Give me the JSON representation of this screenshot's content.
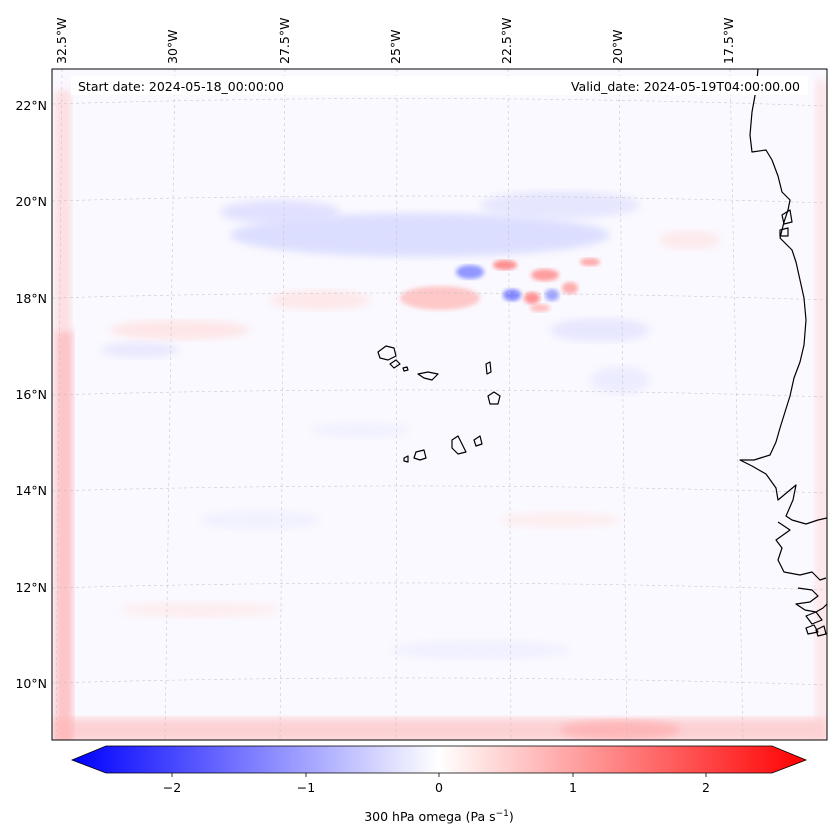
{
  "header": {
    "start_date": "Start date: 2024-05-18_00:00:00",
    "valid_date": "Valid_date: 2024-05-19T04:00:00.00"
  },
  "map": {
    "lon_labels": [
      "32.5°W",
      "30°W",
      "27.5°W",
      "25°W",
      "22.5°W",
      "20°W",
      "17.5°W"
    ],
    "lat_labels": [
      "22°N",
      "20°N",
      "18°N",
      "16°N",
      "14°N",
      "12°N",
      "10°N"
    ],
    "field": "300 hPa omega",
    "region": "Cabo Verde / West African coast"
  },
  "colorbar": {
    "label_prefix": "300 hPa omega (Pa s",
    "label_exp": "−1",
    "label_suffix": ")",
    "ticks": [
      "−2",
      "−1",
      "0",
      "1",
      "2"
    ],
    "tick_values": [
      -2,
      -1,
      0,
      1,
      2
    ],
    "range": [
      -2.5,
      2.5
    ],
    "colors": {
      "negative": "#0000ff",
      "zero": "#ffffff",
      "positive": "#ff0000"
    }
  }
}
